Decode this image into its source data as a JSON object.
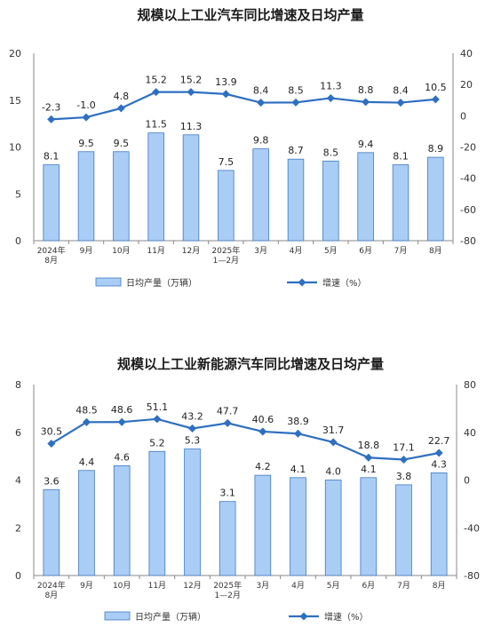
{
  "chart_data": [
    {
      "type": "bar+line",
      "title": "规模以上工业汽车同比增速及日均产量",
      "categories": [
        [
          "2024年",
          "8月"
        ],
        [
          "9月"
        ],
        [
          "10月"
        ],
        [
          "11月"
        ],
        [
          "12月"
        ],
        [
          "2025年",
          "1—2月"
        ],
        [
          "3月"
        ],
        [
          "4月"
        ],
        [
          "5月"
        ],
        [
          "6月"
        ],
        [
          "7月"
        ],
        [
          "8月"
        ]
      ],
      "series": [
        {
          "name": "日均产量（万辆）",
          "type": "bar",
          "axis": "left",
          "values": [
            8.1,
            9.5,
            9.5,
            11.5,
            11.3,
            7.5,
            9.8,
            8.7,
            8.5,
            9.4,
            8.1,
            8.9
          ]
        },
        {
          "name": "增速（%）",
          "type": "line",
          "axis": "right",
          "values": [
            -2.3,
            -1.0,
            4.8,
            15.2,
            15.2,
            13.9,
            8.4,
            8.5,
            11.3,
            8.8,
            8.4,
            10.5
          ]
        }
      ],
      "y_left": {
        "min": 0,
        "max": 20,
        "ticks": [
          0,
          5,
          10,
          15,
          20
        ]
      },
      "y_right": {
        "min": -80,
        "max": 40,
        "ticks": [
          -80,
          -60,
          -40,
          -20,
          0,
          20,
          40
        ]
      },
      "legend_position": "bottom",
      "colors": {
        "bar_fill": "#a9cdf5",
        "bar_stroke": "#3f79c2",
        "line": "#2e6fc0"
      }
    },
    {
      "type": "bar+line",
      "title": "规模以上工业新能源汽车同比增速及日均产量",
      "categories": [
        [
          "2024年",
          "8月"
        ],
        [
          "9月"
        ],
        [
          "10月"
        ],
        [
          "11月"
        ],
        [
          "12月"
        ],
        [
          "2025年",
          "1—2月"
        ],
        [
          "3月"
        ],
        [
          "4月"
        ],
        [
          "5月"
        ],
        [
          "6月"
        ],
        [
          "7月"
        ],
        [
          "8月"
        ]
      ],
      "series": [
        {
          "name": "日均产量（万辆）",
          "type": "bar",
          "axis": "left",
          "values": [
            3.6,
            4.4,
            4.6,
            5.2,
            5.3,
            3.1,
            4.2,
            4.1,
            4.0,
            4.1,
            3.8,
            4.3
          ]
        },
        {
          "name": "增速（%）",
          "type": "line",
          "axis": "right",
          "values": [
            30.5,
            48.5,
            48.6,
            51.1,
            43.2,
            47.7,
            40.6,
            38.9,
            31.7,
            18.8,
            17.1,
            22.7
          ]
        }
      ],
      "y_left": {
        "min": 0,
        "max": 8,
        "ticks": [
          0,
          2,
          4,
          6,
          8
        ]
      },
      "y_right": {
        "min": -80,
        "max": 80,
        "ticks": [
          -80,
          -40,
          0,
          40,
          80
        ]
      },
      "legend_position": "bottom",
      "colors": {
        "bar_fill": "#a9cdf5",
        "bar_stroke": "#3f79c2",
        "line": "#2e6fc0"
      }
    }
  ]
}
